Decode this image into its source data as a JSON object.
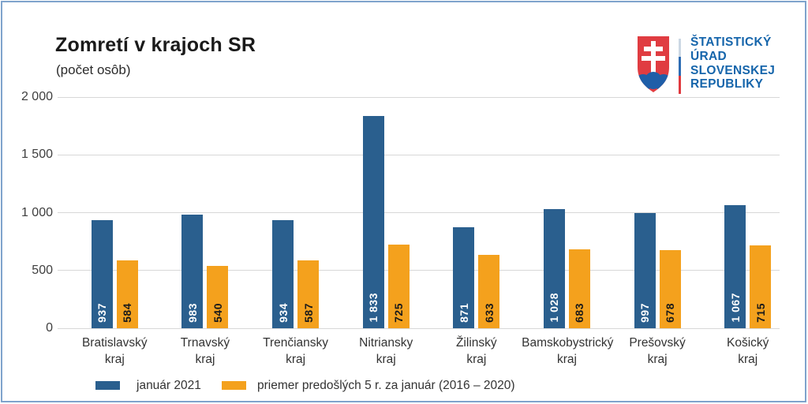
{
  "title": "Zomretí v krajoch SR",
  "subtitle": "(počet osôb)",
  "logo": {
    "lines": [
      "ŠTATISTICKÝ",
      "ÚRAD",
      "SLOVENSKEJ",
      "REPUBLIKY"
    ],
    "text_color": "#1565ab",
    "shield_red": "#e03c41",
    "hill_blue": "#1f5ea8",
    "divider_colors": [
      "#ccd8e4",
      "#2e6db4",
      "#e03a3f"
    ]
  },
  "colors": {
    "bar_blue": "#2a5f8e",
    "bar_orange": "#f4a11d",
    "frame_border": "#7fa3cc",
    "gridline": "#d8d8d8",
    "axis_text": "#3f3f3f"
  },
  "legend": [
    {
      "label": "január 2021",
      "color": "#2a5f8e"
    },
    {
      "label": "priemer predošlých 5 r. za január (2016 – 2020)",
      "color": "#f4a11d"
    }
  ],
  "chart_data": {
    "type": "bar",
    "title": "Zomretí v krajoch SR",
    "subtitle": "(počet osôb)",
    "categories": [
      "Bratislavský",
      "Trnavský",
      "Trenčiansky",
      "Nitriansky",
      "Žilinský",
      "Bamskobystrický",
      "Prešovský",
      "Košický"
    ],
    "category_suffix": "kraj",
    "series": [
      {
        "name": "január 2021",
        "key": "januar-2021",
        "color": "#2a5f8e",
        "values": [
          937,
          983,
          934,
          1833,
          871,
          1028,
          997,
          1067
        ],
        "labels": [
          "937",
          "983",
          "934",
          "1 833",
          "871",
          "1 028",
          "997",
          "1 067"
        ]
      },
      {
        "name": "priemer predošlých 5 r. za január (2016 – 2020)",
        "key": "priemer-2016-2020",
        "color": "#f4a11d",
        "values": [
          584,
          540,
          587,
          725,
          633,
          683,
          678,
          715
        ],
        "labels": [
          "584",
          "540",
          "587",
          "725",
          "633",
          "683",
          "678",
          "715"
        ]
      }
    ],
    "xlabel": "",
    "ylabel": "",
    "ylim": [
      0,
      2000
    ],
    "y_ticks": [
      "2 000",
      "1 500",
      "1 000",
      "500",
      "0"
    ],
    "grid": true,
    "legend_position": "bottom"
  }
}
